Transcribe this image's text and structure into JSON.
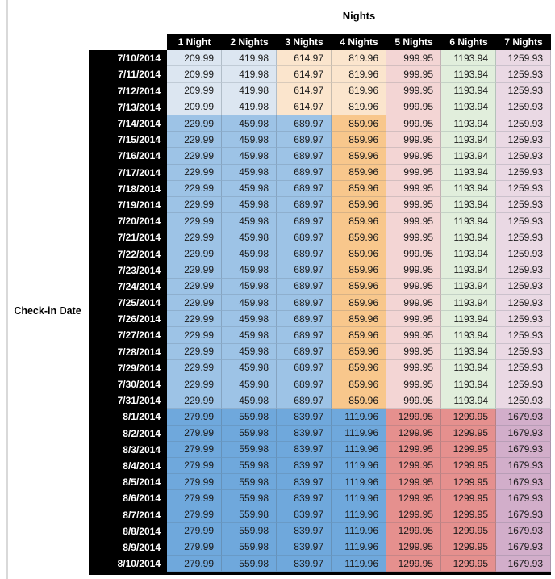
{
  "page": {
    "left_rule_color": "#D9D9D9",
    "background_color": "#FFFFFF"
  },
  "table": {
    "title": "Nights",
    "row_axis_label": "Check-in Date",
    "column_headers": [
      "1 Night",
      "2 Nights",
      "3 Nights",
      "4 Nights",
      "5 Nights",
      "6 Nights",
      "7 Nights"
    ],
    "header_bg": "#000000",
    "header_text_color": "#FFFFFF",
    "value_text_color": "#1A1A1A",
    "palette": {
      "light_blue": "#DCE6F1",
      "light_orange": "#FBE5CD",
      "mid_blue": "#9DC3E6",
      "mid_orange": "#F8C78C",
      "light_red": "#F3D5D4",
      "light_green": "#E1EEDC",
      "light_purple": "#EAD9E4",
      "dark_blue": "#6FA8DC",
      "dark_red": "#E5908E",
      "dark_purple": "#D2AECA"
    },
    "band_color_keys": {
      "early_july": [
        "light_blue",
        "light_blue",
        "light_orange",
        "light_orange",
        "light_red",
        "light_green",
        "light_purple"
      ],
      "mid_july": [
        "mid_blue",
        "mid_blue",
        "mid_blue",
        "mid_orange",
        "light_red",
        "light_green",
        "light_purple"
      ],
      "august": [
        "dark_blue",
        "dark_blue",
        "dark_blue",
        "dark_blue",
        "dark_red",
        "dark_red",
        "dark_purple"
      ]
    },
    "rows": [
      {
        "date": "7/10/2014",
        "values": [
          "209.99",
          "419.98",
          "614.97",
          "819.96",
          "999.95",
          "1193.94",
          "1259.93"
        ],
        "band": "early_july"
      },
      {
        "date": "7/11/2014",
        "values": [
          "209.99",
          "419.98",
          "614.97",
          "819.96",
          "999.95",
          "1193.94",
          "1259.93"
        ],
        "band": "early_july"
      },
      {
        "date": "7/12/2014",
        "values": [
          "209.99",
          "419.98",
          "614.97",
          "819.96",
          "999.95",
          "1193.94",
          "1259.93"
        ],
        "band": "early_july"
      },
      {
        "date": "7/13/2014",
        "values": [
          "209.99",
          "419.98",
          "614.97",
          "819.96",
          "999.95",
          "1193.94",
          "1259.93"
        ],
        "band": "early_july"
      },
      {
        "date": "7/14/2014",
        "values": [
          "229.99",
          "459.98",
          "689.97",
          "859.96",
          "999.95",
          "1193.94",
          "1259.93"
        ],
        "band": "mid_july"
      },
      {
        "date": "7/15/2014",
        "values": [
          "229.99",
          "459.98",
          "689.97",
          "859.96",
          "999.95",
          "1193.94",
          "1259.93"
        ],
        "band": "mid_july"
      },
      {
        "date": "7/16/2014",
        "values": [
          "229.99",
          "459.98",
          "689.97",
          "859.96",
          "999.95",
          "1193.94",
          "1259.93"
        ],
        "band": "mid_july"
      },
      {
        "date": "7/17/2014",
        "values": [
          "229.99",
          "459.98",
          "689.97",
          "859.96",
          "999.95",
          "1193.94",
          "1259.93"
        ],
        "band": "mid_july"
      },
      {
        "date": "7/18/2014",
        "values": [
          "229.99",
          "459.98",
          "689.97",
          "859.96",
          "999.95",
          "1193.94",
          "1259.93"
        ],
        "band": "mid_july"
      },
      {
        "date": "7/19/2014",
        "values": [
          "229.99",
          "459.98",
          "689.97",
          "859.96",
          "999.95",
          "1193.94",
          "1259.93"
        ],
        "band": "mid_july"
      },
      {
        "date": "7/20/2014",
        "values": [
          "229.99",
          "459.98",
          "689.97",
          "859.96",
          "999.95",
          "1193.94",
          "1259.93"
        ],
        "band": "mid_july"
      },
      {
        "date": "7/21/2014",
        "values": [
          "229.99",
          "459.98",
          "689.97",
          "859.96",
          "999.95",
          "1193.94",
          "1259.93"
        ],
        "band": "mid_july"
      },
      {
        "date": "7/22/2014",
        "values": [
          "229.99",
          "459.98",
          "689.97",
          "859.96",
          "999.95",
          "1193.94",
          "1259.93"
        ],
        "band": "mid_july"
      },
      {
        "date": "7/23/2014",
        "values": [
          "229.99",
          "459.98",
          "689.97",
          "859.96",
          "999.95",
          "1193.94",
          "1259.93"
        ],
        "band": "mid_july"
      },
      {
        "date": "7/24/2014",
        "values": [
          "229.99",
          "459.98",
          "689.97",
          "859.96",
          "999.95",
          "1193.94",
          "1259.93"
        ],
        "band": "mid_july"
      },
      {
        "date": "7/25/2014",
        "values": [
          "229.99",
          "459.98",
          "689.97",
          "859.96",
          "999.95",
          "1193.94",
          "1259.93"
        ],
        "band": "mid_july"
      },
      {
        "date": "7/26/2014",
        "values": [
          "229.99",
          "459.98",
          "689.97",
          "859.96",
          "999.95",
          "1193.94",
          "1259.93"
        ],
        "band": "mid_july"
      },
      {
        "date": "7/27/2014",
        "values": [
          "229.99",
          "459.98",
          "689.97",
          "859.96",
          "999.95",
          "1193.94",
          "1259.93"
        ],
        "band": "mid_july"
      },
      {
        "date": "7/28/2014",
        "values": [
          "229.99",
          "459.98",
          "689.97",
          "859.96",
          "999.95",
          "1193.94",
          "1259.93"
        ],
        "band": "mid_july"
      },
      {
        "date": "7/29/2014",
        "values": [
          "229.99",
          "459.98",
          "689.97",
          "859.96",
          "999.95",
          "1193.94",
          "1259.93"
        ],
        "band": "mid_july"
      },
      {
        "date": "7/30/2014",
        "values": [
          "229.99",
          "459.98",
          "689.97",
          "859.96",
          "999.95",
          "1193.94",
          "1259.93"
        ],
        "band": "mid_july"
      },
      {
        "date": "7/31/2014",
        "values": [
          "229.99",
          "459.98",
          "689.97",
          "859.96",
          "999.95",
          "1193.94",
          "1259.93"
        ],
        "band": "mid_july"
      },
      {
        "date": "8/1/2014",
        "values": [
          "279.99",
          "559.98",
          "839.97",
          "1119.96",
          "1299.95",
          "1299.95",
          "1679.93"
        ],
        "band": "august"
      },
      {
        "date": "8/2/2014",
        "values": [
          "279.99",
          "559.98",
          "839.97",
          "1119.96",
          "1299.95",
          "1299.95",
          "1679.93"
        ],
        "band": "august"
      },
      {
        "date": "8/3/2014",
        "values": [
          "279.99",
          "559.98",
          "839.97",
          "1119.96",
          "1299.95",
          "1299.95",
          "1679.93"
        ],
        "band": "august"
      },
      {
        "date": "8/4/2014",
        "values": [
          "279.99",
          "559.98",
          "839.97",
          "1119.96",
          "1299.95",
          "1299.95",
          "1679.93"
        ],
        "band": "august"
      },
      {
        "date": "8/5/2014",
        "values": [
          "279.99",
          "559.98",
          "839.97",
          "1119.96",
          "1299.95",
          "1299.95",
          "1679.93"
        ],
        "band": "august"
      },
      {
        "date": "8/6/2014",
        "values": [
          "279.99",
          "559.98",
          "839.97",
          "1119.96",
          "1299.95",
          "1299.95",
          "1679.93"
        ],
        "band": "august"
      },
      {
        "date": "8/7/2014",
        "values": [
          "279.99",
          "559.98",
          "839.97",
          "1119.96",
          "1299.95",
          "1299.95",
          "1679.93"
        ],
        "band": "august"
      },
      {
        "date": "8/8/2014",
        "values": [
          "279.99",
          "559.98",
          "839.97",
          "1119.96",
          "1299.95",
          "1299.95",
          "1679.93"
        ],
        "band": "august"
      },
      {
        "date": "8/9/2014",
        "values": [
          "279.99",
          "559.98",
          "839.97",
          "1119.96",
          "1299.95",
          "1299.95",
          "1679.93"
        ],
        "band": "august"
      },
      {
        "date": "8/10/2014",
        "values": [
          "279.99",
          "559.98",
          "839.97",
          "1119.96",
          "1299.95",
          "1299.95",
          "1679.93"
        ],
        "band": "august"
      }
    ]
  }
}
